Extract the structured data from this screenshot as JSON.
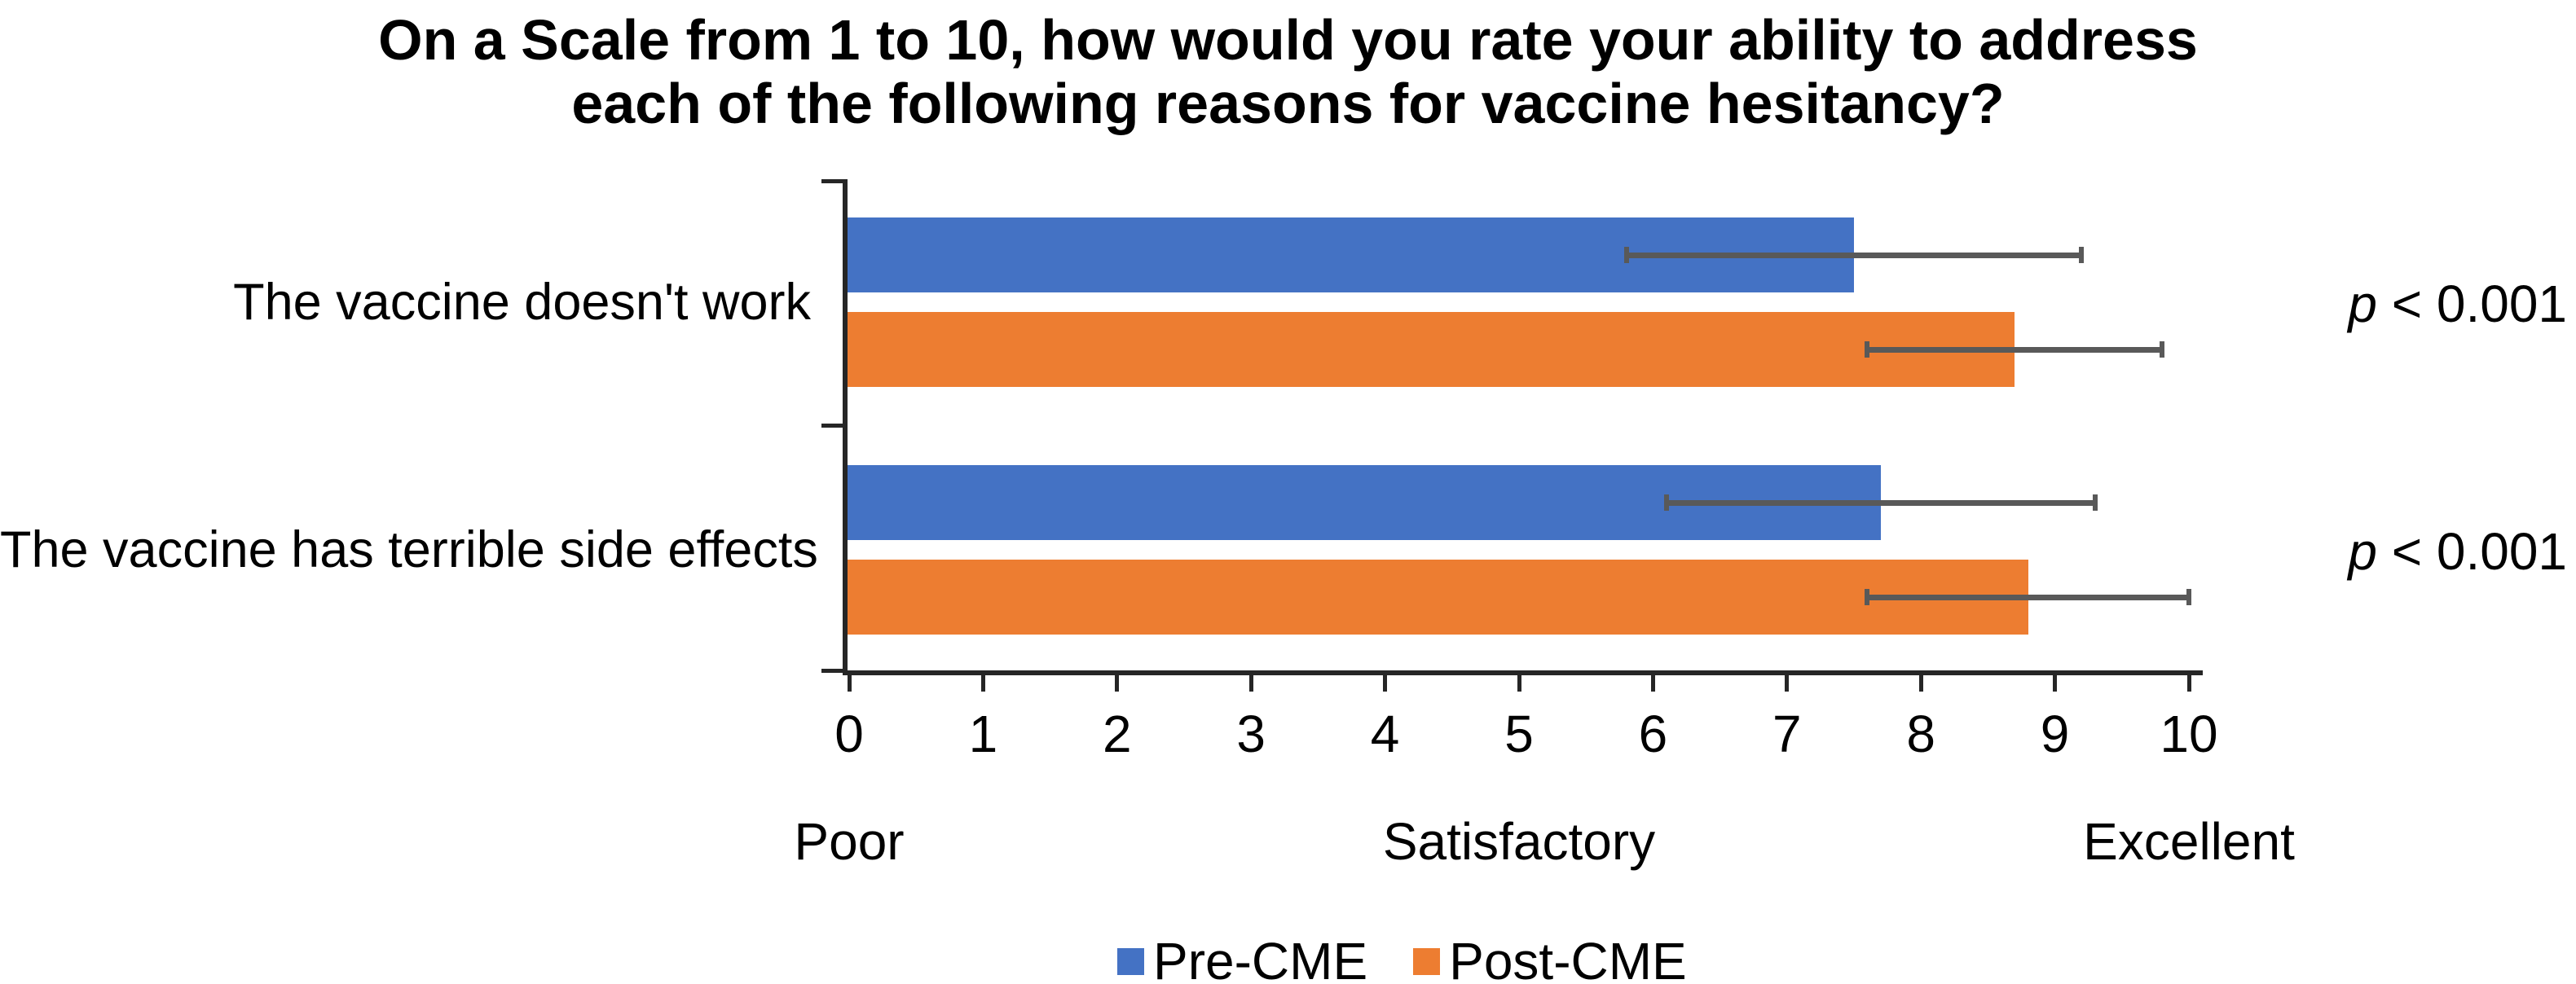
{
  "chart_data": {
    "type": "bar",
    "orientation": "horizontal",
    "title_lines": [
      "On a Scale from 1 to 10, how would you rate your ability to address",
      "each of the following reasons for vaccine hesitancy?"
    ],
    "categories": [
      "The vaccine doesn't work",
      "The vaccine has terrible side effects"
    ],
    "series": [
      {
        "name": "Pre-CME",
        "color": "#4472C4",
        "values": [
          7.5,
          7.7
        ],
        "error_minus": [
          1.7,
          1.6
        ],
        "error_plus": [
          1.7,
          1.6
        ]
      },
      {
        "name": "Post-CME",
        "color": "#ED7D31",
        "values": [
          8.7,
          8.8
        ],
        "error_minus": [
          1.1,
          1.2
        ],
        "error_plus": [
          1.1,
          1.2
        ]
      }
    ],
    "p_annotations": [
      {
        "symbol": "p",
        "text": " < 0.001"
      },
      {
        "symbol": "p",
        "text": " < 0.001"
      }
    ],
    "xlim": [
      0,
      10
    ],
    "x_ticks": [
      "0",
      "1",
      "2",
      "3",
      "4",
      "5",
      "6",
      "7",
      "8",
      "9",
      "10"
    ],
    "scale_labels": [
      {
        "label": "Poor",
        "value": 0
      },
      {
        "label": "Satisfactory",
        "value": 5
      },
      {
        "label": "Excellent",
        "value": 10
      }
    ],
    "legend_position": "bottom",
    "grid": false,
    "error_bar_color": "#595959",
    "axis_color": "#262626",
    "text_color": "#000000"
  }
}
